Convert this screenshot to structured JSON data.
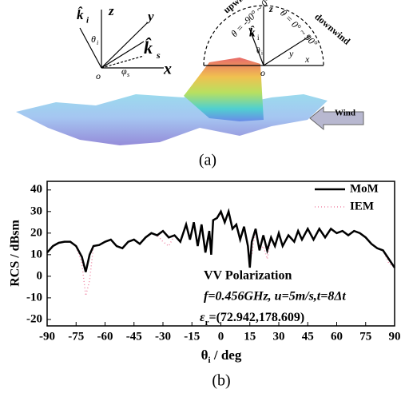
{
  "diagram": {
    "left_labels": {
      "k_i": "k̂",
      "k_i_sub": "i",
      "z": "z",
      "y": "y",
      "k_s": "k̂",
      "k_s_sub": "s",
      "theta": "θ",
      "theta_sub": "i",
      "phi": "φ",
      "phi_sub": "s",
      "o": "o",
      "x": "x"
    },
    "right_labels": {
      "upwind": "upwind",
      "downwind": "downwind",
      "range_up": "θ = -90° ~ 0°",
      "range_down": "θ = 0° ~ 90°",
      "z": "z",
      "k_i": "k̂",
      "k_i_sub": "i",
      "theta": "θ",
      "theta_sub": "i",
      "y": "y",
      "x": "x",
      "o": "o"
    },
    "wind": "Wind",
    "caption": "(a)"
  },
  "chart_data": {
    "type": "line",
    "caption": "(b)",
    "y_label": "RCS / dBsm",
    "x_label": [
      "θ",
      "i",
      " / deg"
    ],
    "x": [
      -90,
      -87,
      -84,
      -81,
      -78,
      -75,
      -72,
      -70,
      -68,
      -66,
      -63,
      -60,
      -57,
      -54,
      -51,
      -48,
      -45,
      -42,
      -39,
      -36,
      -33,
      -30,
      -27,
      -24,
      -21,
      -18,
      -16,
      -14,
      -12,
      -10,
      -8,
      -6,
      -5,
      -4,
      -2,
      0,
      2,
      4,
      6,
      8,
      10,
      12,
      14,
      15,
      16,
      18,
      20,
      22,
      24,
      26,
      28,
      30,
      32,
      35,
      38,
      40,
      42,
      45,
      48,
      51,
      54,
      57,
      60,
      63,
      66,
      69,
      72,
      75,
      78,
      81,
      84,
      87,
      90
    ],
    "series": [
      {
        "name": "MoM",
        "color": "#000000",
        "dash": "solid",
        "values": [
          11,
          14,
          15.5,
          16,
          16,
          14,
          9,
          2,
          10,
          14,
          14.5,
          16,
          17,
          14,
          13,
          16,
          17,
          15,
          18,
          20,
          19,
          21,
          18,
          19,
          16,
          24,
          17,
          25,
          14,
          24,
          11,
          21,
          10,
          26,
          27,
          30,
          25,
          30,
          22,
          24,
          17,
          23,
          14,
          4,
          16,
          22,
          12,
          19,
          12,
          18,
          14,
          20,
          14,
          19,
          16,
          21,
          17,
          22,
          17,
          22,
          18,
          22,
          20,
          21,
          19,
          21,
          20,
          18,
          15,
          13,
          12,
          8,
          4
        ]
      },
      {
        "name": "IEM",
        "color": "#f08aa8",
        "dash": "dotted",
        "values": [
          11,
          14,
          15.5,
          16,
          16,
          14,
          6,
          -9,
          -2,
          14,
          14.5,
          16,
          17,
          14,
          13,
          16,
          17,
          15,
          18,
          20,
          19,
          16,
          14,
          19,
          16,
          24,
          17,
          25,
          14,
          24,
          11,
          21,
          10,
          26,
          27,
          29,
          25,
          30,
          22,
          24,
          17,
          23,
          14,
          8,
          10,
          22,
          12,
          14,
          8,
          18,
          14,
          20,
          14,
          19,
          16,
          21,
          17,
          22,
          17,
          22,
          18,
          22,
          20,
          21,
          19,
          21,
          20,
          18,
          15,
          13,
          12,
          6,
          4
        ]
      }
    ],
    "xlim": [
      -90,
      90
    ],
    "xticks": [
      -90,
      -75,
      -60,
      -45,
      -30,
      -15,
      0,
      15,
      30,
      45,
      60,
      75,
      90
    ],
    "ylim": [
      -23,
      44
    ],
    "yticks": [
      -20,
      -10,
      0,
      10,
      20,
      30,
      40
    ],
    "legend": "upper right",
    "annotations": [
      "VV Polarization",
      "f=0.456GHz, u=5m/s,t=8Δt",
      [
        "ε",
        "r",
        "=(72.942,178.609)"
      ]
    ]
  }
}
